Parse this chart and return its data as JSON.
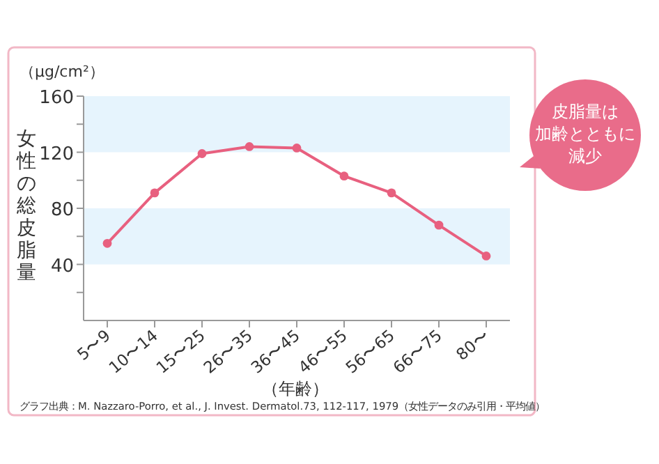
{
  "chart_data": {
    "type": "line",
    "ylabel": "女性の総皮脂量",
    "xlabel": "（年齢）",
    "annotations": [
      "（μg/cm²）",
      "グラフ出典：M. Nazzaro-Porro, et al., J. Invest. Dermatol.73, 112-117, 1979（女性データのみ引用・平均値）",
      "皮脂量は加齢とともに減少"
    ],
    "categories": [
      "5〜9",
      "10〜14",
      "15〜25",
      "26〜35",
      "36〜45",
      "46〜55",
      "56〜65",
      "66〜75",
      "80〜"
    ],
    "series": [
      {
        "color": "#e8607f",
        "values": [
          55,
          91,
          119,
          124,
          123,
          103,
          91,
          68,
          46
        ]
      }
    ],
    "ylim": [
      0,
      160
    ],
    "yticks": [
      {
        "value": 20,
        "label": null
      },
      40,
      {
        "value": 60,
        "label": null
      },
      80,
      {
        "value": 100,
        "label": null
      },
      120,
      {
        "value": 140,
        "label": null
      },
      160
    ],
    "bands": [
      {
        "axis": "y",
        "from": 40,
        "to": 80,
        "color": "#e6f4fd"
      },
      {
        "axis": "y",
        "from": 120,
        "to": 160,
        "color": "#e6f4fd"
      }
    ],
    "marker": "circle",
    "line_style": "solid",
    "grid": false
  }
}
